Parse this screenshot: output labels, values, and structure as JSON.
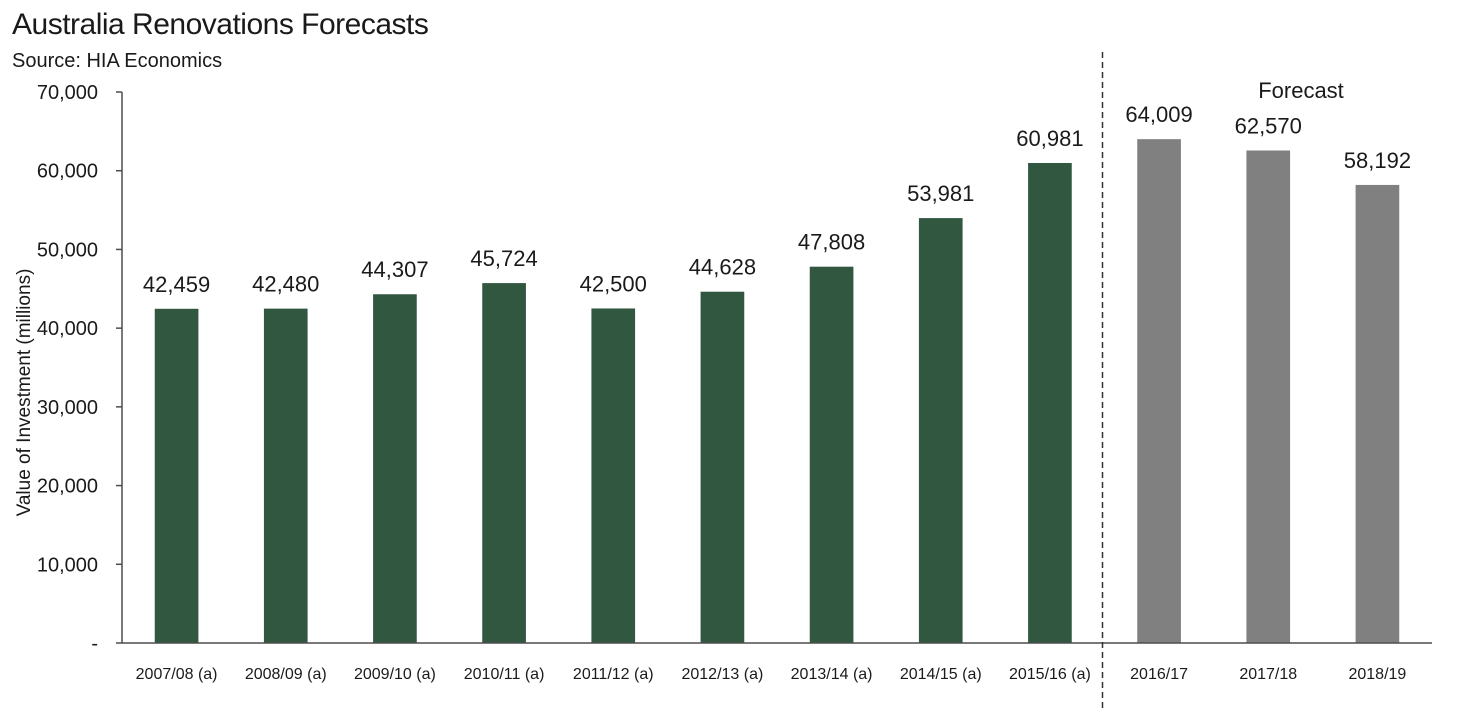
{
  "chart_data": {
    "type": "bar",
    "title": "Australia Renovations Forecasts",
    "subtitle": "Source: HIA Economics",
    "ylabel": "Value of Investment (millions)",
    "xlabel": "",
    "ylim": [
      0,
      70000
    ],
    "yticks": [
      0,
      10000,
      20000,
      30000,
      40000,
      50000,
      60000,
      70000
    ],
    "ytick_labels": [
      "-",
      "10,000",
      "20,000",
      "30,000",
      "40,000",
      "50,000",
      "60,000",
      "70,000"
    ],
    "categories": [
      "2007/08 (a)",
      "2008/09 (a)",
      "2009/10 (a)",
      "2010/11 (a)",
      "2011/12 (a)",
      "2012/13 (a)",
      "2013/14 (a)",
      "2014/15 (a)",
      "2015/16 (a)",
      "2016/17",
      "2017/18",
      "2018/19"
    ],
    "values": [
      42459,
      42480,
      44307,
      45724,
      42500,
      44628,
      47808,
      53981,
      60981,
      64009,
      62570,
      58192
    ],
    "value_labels": [
      "42,459",
      "42,480",
      "44,307",
      "45,724",
      "42,500",
      "44,628",
      "47,808",
      "53,981",
      "60,981",
      "64,009",
      "62,570",
      "58,192"
    ],
    "forecast_start_index": 9,
    "annotation": "Forecast",
    "grid": false,
    "legend": "none",
    "colors": {
      "actual": "#325741",
      "forecast": "#808080",
      "axis": "#4d4d4d",
      "divider": "#333333"
    }
  }
}
